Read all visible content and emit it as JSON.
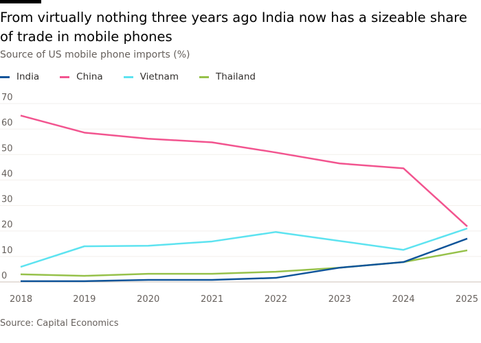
{
  "chart_data": {
    "type": "line",
    "title": "From virtually nothing three years ago India now has a sizeable share of trade in mobile phones",
    "subtitle": "Source of US mobile phone imports (%)",
    "source": "Source: Capital Economics",
    "x": [
      "2018",
      "2019",
      "2020",
      "2021",
      "2022",
      "2023",
      "2024",
      "2025"
    ],
    "ylim": [
      0,
      70
    ],
    "yticks": [
      0,
      10,
      20,
      30,
      40,
      50,
      60,
      70
    ],
    "grid": true,
    "legend_position": "top-left",
    "series": [
      {
        "name": "India",
        "color": "#0f5499",
        "values": [
          0.3,
          0.3,
          0.8,
          0.8,
          1.6,
          5.6,
          7.8,
          17
        ]
      },
      {
        "name": "China",
        "color": "#f2548f",
        "values": [
          65.3,
          58.6,
          56.2,
          54.8,
          50.8,
          46.5,
          44.6,
          21.8
        ]
      },
      {
        "name": "Vietnam",
        "color": "#5de3f0",
        "values": [
          5.9,
          14,
          14.2,
          15.9,
          19.6,
          16.1,
          12.6,
          21
        ]
      },
      {
        "name": "Thailand",
        "color": "#96c14a",
        "values": [
          3,
          2.4,
          3.2,
          3.2,
          4,
          5.6,
          7.8,
          12.4
        ]
      }
    ]
  }
}
